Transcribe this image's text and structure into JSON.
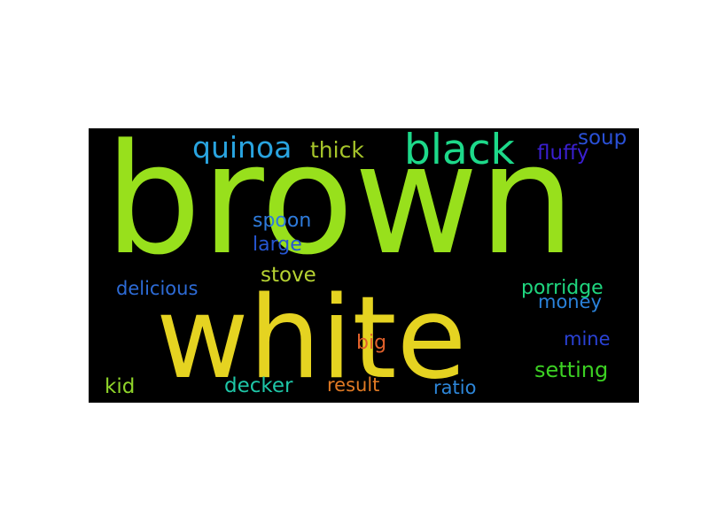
{
  "background": "#000000",
  "words": [
    {
      "text": "brown",
      "color": "#98E01C"
    },
    {
      "text": "white",
      "color": "#E5D321"
    },
    {
      "text": "black",
      "color": "#1DD98A"
    },
    {
      "text": "quinoa",
      "color": "#29A4E0"
    },
    {
      "text": "thick",
      "color": "#A6C52A"
    },
    {
      "text": "soup",
      "color": "#2A50D6"
    },
    {
      "text": "fluffy",
      "color": "#3A1FD0"
    },
    {
      "text": "spoon",
      "color": "#2E7BDB"
    },
    {
      "text": "large",
      "color": "#2656D2"
    },
    {
      "text": "stove",
      "color": "#B6D232"
    },
    {
      "text": "delicious",
      "color": "#2D6BD6"
    },
    {
      "text": "porridge",
      "color": "#1FD67F"
    },
    {
      "text": "money",
      "color": "#2A82DA"
    },
    {
      "text": "mine",
      "color": "#2A42D6"
    },
    {
      "text": "big",
      "color": "#E0602A"
    },
    {
      "text": "setting",
      "color": "#3CD023"
    },
    {
      "text": "kid",
      "color": "#8FD42A"
    },
    {
      "text": "decker",
      "color": "#1EC6A7"
    },
    {
      "text": "result",
      "color": "#E07A24"
    },
    {
      "text": "ratio",
      "color": "#2D86D9"
    }
  ]
}
